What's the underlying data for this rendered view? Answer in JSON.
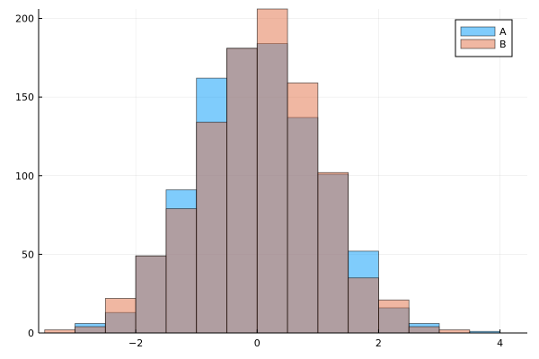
{
  "chart_data": {
    "type": "histogram",
    "title": "",
    "xlabel": "",
    "ylabel": "",
    "xlim": [
      -3.6,
      4.45
    ],
    "ylim": [
      0,
      206
    ],
    "bin_width": 0.5,
    "x_ticks": [
      -2,
      0,
      2,
      4
    ],
    "x_tick_labels": [
      "−2",
      "0",
      "2",
      "4"
    ],
    "y_ticks": [
      0,
      50,
      100,
      150,
      200
    ],
    "y_tick_labels": [
      "0",
      "50",
      "100",
      "150",
      "200"
    ],
    "grid": true,
    "legend_position": "top-right",
    "series": [
      {
        "name": "A",
        "color": "#009af9",
        "opacity": 0.5,
        "bin_edges": [
          -3.0,
          -2.5,
          -2.0,
          -1.5,
          -1.0,
          -0.5,
          0.0,
          0.5,
          1.0,
          1.5,
          2.0,
          2.5,
          3.0,
          3.5,
          4.0
        ],
        "counts": [
          6,
          13,
          49,
          91,
          162,
          181,
          184,
          137,
          101,
          52,
          16,
          6,
          0,
          1
        ]
      },
      {
        "name": "B",
        "color": "#e26f46",
        "opacity": 0.5,
        "bin_edges": [
          -3.5,
          -3.0,
          -2.5,
          -2.0,
          -1.5,
          -1.0,
          -0.5,
          0.0,
          0.5,
          1.0,
          1.5,
          2.0,
          2.5,
          3.0,
          3.5
        ],
        "counts": [
          2,
          4,
          22,
          49,
          79,
          134,
          181,
          206,
          159,
          102,
          35,
          21,
          4,
          2
        ]
      }
    ]
  }
}
